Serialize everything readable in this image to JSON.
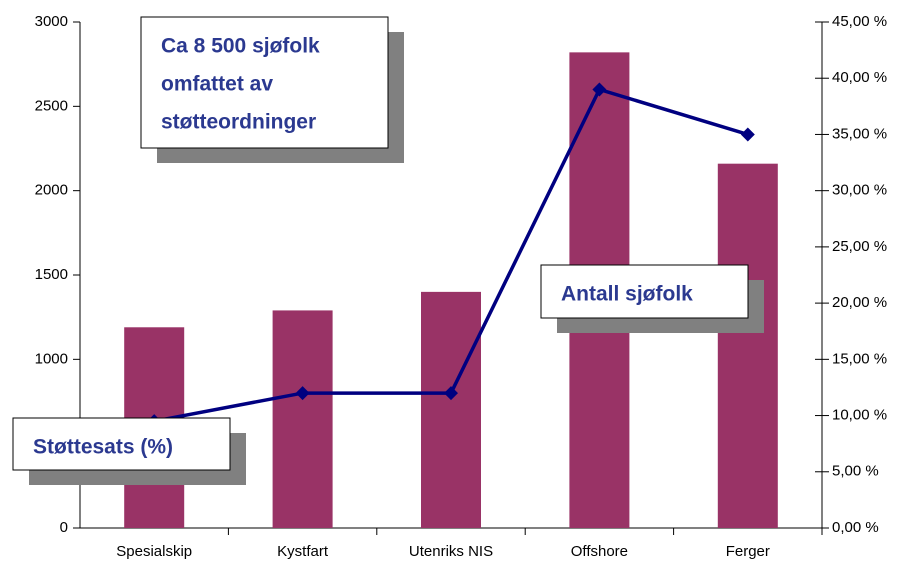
{
  "chart_data": {
    "type": "bar-line",
    "title": [
      "Ca 8 500 sjøfolk",
      "omfattet av",
      "støtteordninger"
    ],
    "categories": [
      "Spesialskip",
      "Kystfart",
      "Utenriks NIS",
      "Offshore",
      "Ferger"
    ],
    "series": [
      {
        "name": "Antall sjøfolk",
        "type": "bar",
        "color": "#993366",
        "values": [
          1190,
          1290,
          1400,
          2820,
          2160
        ]
      },
      {
        "name": "Støttesats (%)",
        "type": "line",
        "axis": "y2",
        "color": "#000080",
        "values": [
          9.5,
          12,
          12,
          39,
          35
        ]
      }
    ],
    "ylim": [
      0,
      3000
    ],
    "yticks": [
      0,
      500,
      1000,
      1500,
      2000,
      2500,
      3000
    ],
    "y2lim": [
      0,
      45
    ],
    "y2ticks": [
      {
        "value": 0,
        "label": "0,00 %"
      },
      {
        "value": 5,
        "label": "5,00 %"
      },
      {
        "value": 10,
        "label": "10,00 %"
      },
      {
        "value": 15,
        "label": "15,00 %"
      },
      {
        "value": 20,
        "label": "20,00 %"
      },
      {
        "value": 25,
        "label": "25,00 %"
      },
      {
        "value": 30,
        "label": "30,00 %"
      },
      {
        "value": 35,
        "label": "35,00 %"
      },
      {
        "value": 40,
        "label": "40,00 %"
      },
      {
        "value": 45,
        "label": "45,00 %"
      }
    ]
  }
}
